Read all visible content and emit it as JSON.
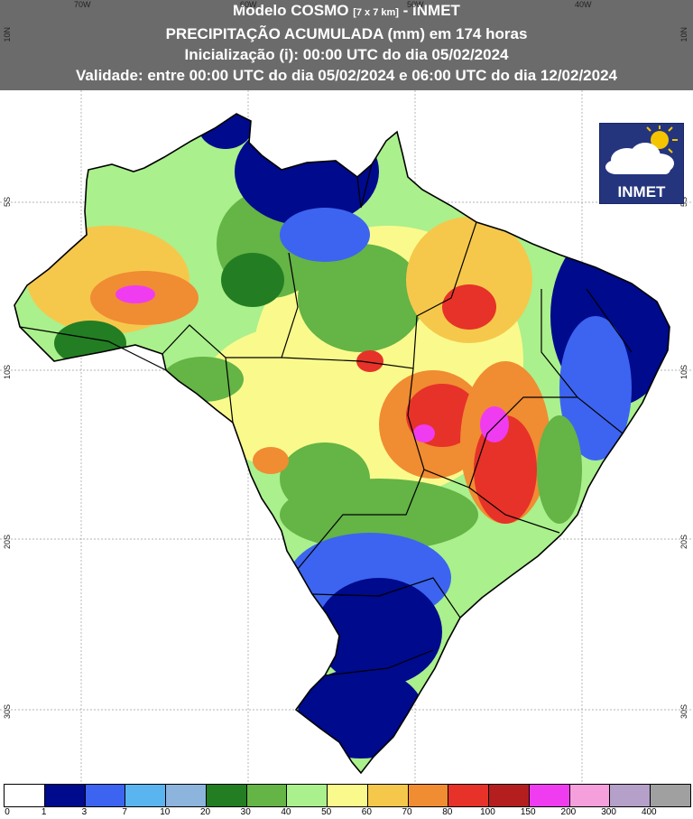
{
  "header": {
    "line1_main": "Modelo COSMO ",
    "line1_small": "[7 x 7 km]",
    "line1_tail": " - INMET",
    "line2": "PRECIPITAÇÃO ACUMULADA (mm) em 174 horas",
    "line3": "Inicialização (i): 00:00 UTC do dia 05/02/2024",
    "line4": "Validade: entre 00:00 UTC do dia 05/02/2024 e 06:00 UTC do dia 12/02/2024"
  },
  "axes": {
    "longitude_labels": [
      "70W",
      "60W",
      "50W",
      "40W"
    ],
    "latitude_labels": [
      "10N",
      "5S",
      "10S",
      "20S",
      "30S"
    ]
  },
  "logo": {
    "text": "INMET",
    "icon": "cloud-sun-icon"
  },
  "legend": {
    "labels": [
      "0",
      "1",
      "3",
      "7",
      "10",
      "20",
      "30",
      "40",
      "50",
      "60",
      "70",
      "80",
      "100",
      "150",
      "200",
      "300",
      "400"
    ],
    "colors": [
      "#ffffff",
      "#000a8c",
      "#3c64f0",
      "#5ab4f0",
      "#8cb4dc",
      "#237d23",
      "#64b446",
      "#aaf08c",
      "#fafa8c",
      "#f5c84b",
      "#f08c32",
      "#e63228",
      "#b41e1e",
      "#f03cf0",
      "#f5a0dc",
      "#b4a0c8",
      "#a0a0a0"
    ]
  },
  "map": {
    "region": "Brasil",
    "colors": {
      "blue_dark": "#0a0f8c",
      "blue": "#3c64f0",
      "green_dark": "#237d23",
      "green": "#64b446",
      "green_light": "#aaf08c",
      "yellow": "#fafa8c",
      "orange": "#f5c84b",
      "red": "#e63228",
      "magenta": "#f03cf0"
    }
  }
}
